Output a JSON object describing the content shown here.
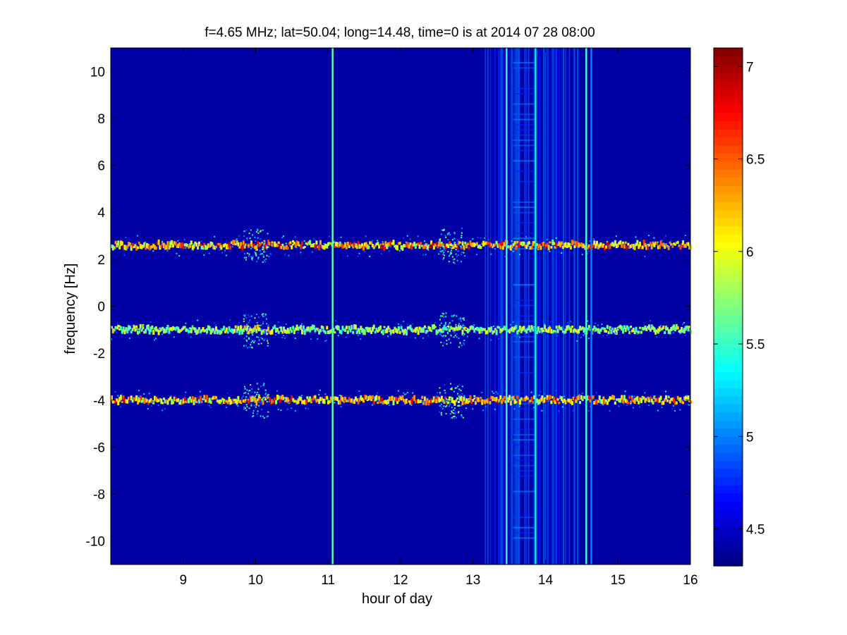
{
  "chart_data": {
    "type": "heatmap",
    "title": "f=4.65 MHz;  lat=50.04; long=14.48, time=0 is at 2014 07 28 08:00",
    "xlabel": "hour of day",
    "ylabel": "frequency [Hz]",
    "xlim": [
      8,
      16
    ],
    "ylim": [
      -11,
      11
    ],
    "xticks": [
      9,
      10,
      11,
      12,
      13,
      14,
      15,
      16
    ],
    "yticks": [
      -10,
      -8,
      -6,
      -4,
      -2,
      0,
      2,
      4,
      6,
      8,
      10
    ],
    "colorbar": {
      "colormap": "jet",
      "clim": [
        4.3,
        7.1
      ],
      "ticks": [
        4.5,
        5,
        5.5,
        6,
        6.5,
        7
      ]
    },
    "background_value": 4.4,
    "bands": [
      {
        "center_hz": 2.6,
        "peak_value": 7.0
      },
      {
        "center_hz": -1.0,
        "peak_value": 6.3
      },
      {
        "center_hz": -4.0,
        "peak_value": 7.0
      }
    ],
    "vertical_lines": [
      {
        "hour": 11.05,
        "value": 5.6
      },
      {
        "hour": 13.45,
        "value": 5.4
      },
      {
        "hour": 13.85,
        "value": 5.3
      },
      {
        "hour": 14.55,
        "value": 5.5
      },
      {
        "hour": 14.62,
        "value": 5.0
      }
    ],
    "interference_region": [
      13.15,
      14.45
    ],
    "grid": false,
    "legend": "colorbar-right"
  },
  "colors": {
    "background_blue": "#00008f",
    "jet": [
      "#00008f",
      "#0000ff",
      "#0080ff",
      "#00ffff",
      "#80ff80",
      "#ffff00",
      "#ff8000",
      "#ff0000",
      "#800000"
    ]
  }
}
